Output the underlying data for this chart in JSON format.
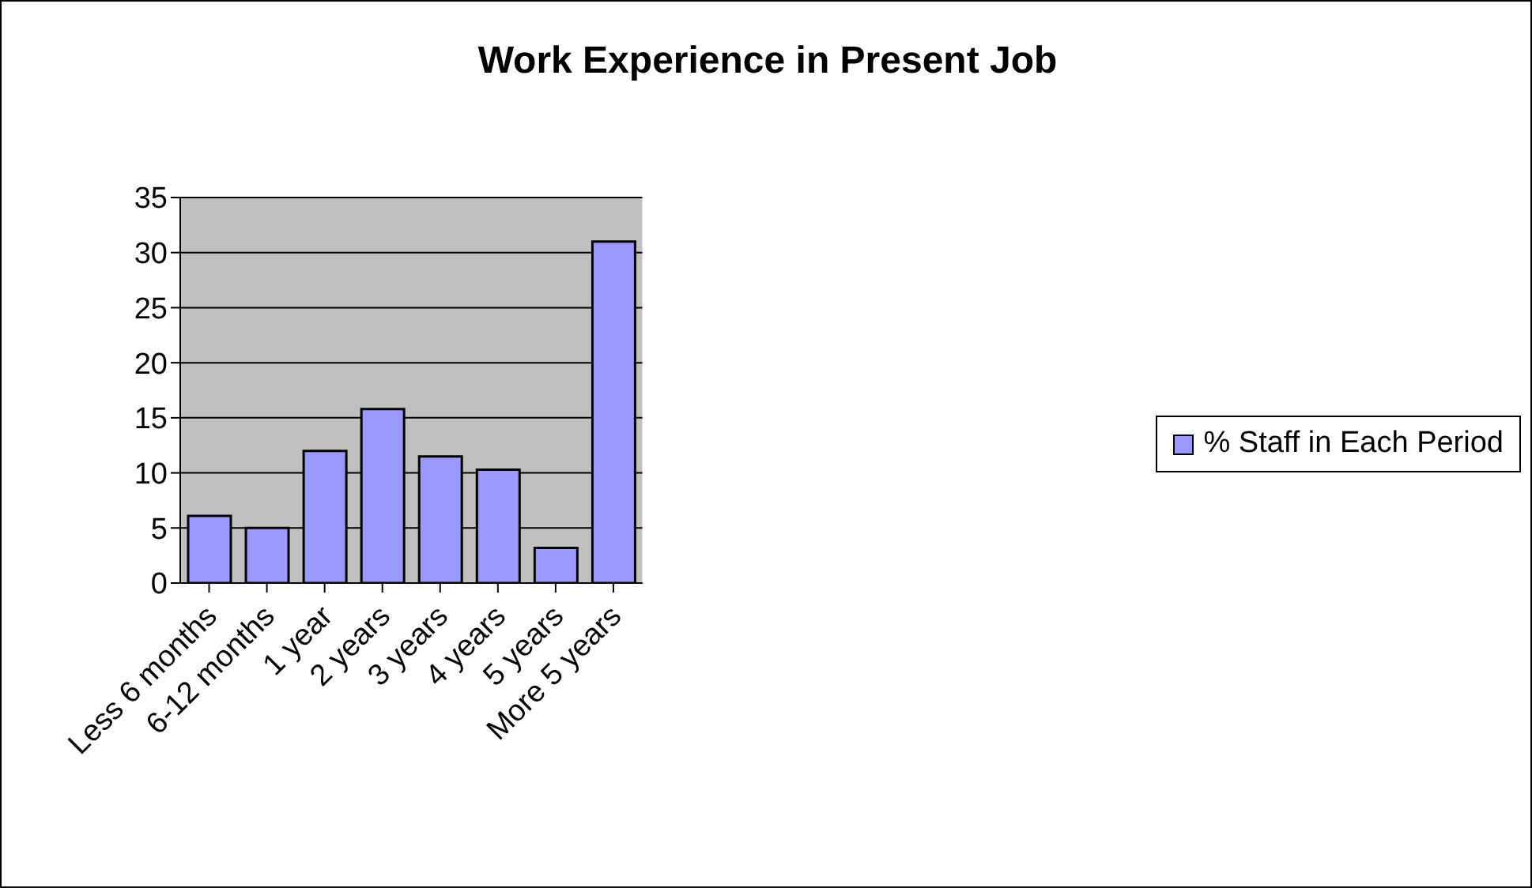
{
  "chart_data": {
    "type": "bar",
    "title": "Work Experience in Present Job",
    "categories": [
      "Less 6 months",
      "6-12 months",
      "1 year",
      "2 years",
      "3 years",
      "4 years",
      "5 years",
      "More 5 years"
    ],
    "series": [
      {
        "name": "% Staff in Each Period",
        "color": "#9999ff",
        "values": [
          6.1,
          5,
          12,
          15.8,
          11.5,
          10.3,
          3.2,
          31
        ]
      }
    ],
    "ylim": [
      0,
      35
    ],
    "yticks": [
      0,
      5,
      10,
      15,
      20,
      25,
      30,
      35
    ],
    "grid": "y",
    "legend": "right"
  }
}
